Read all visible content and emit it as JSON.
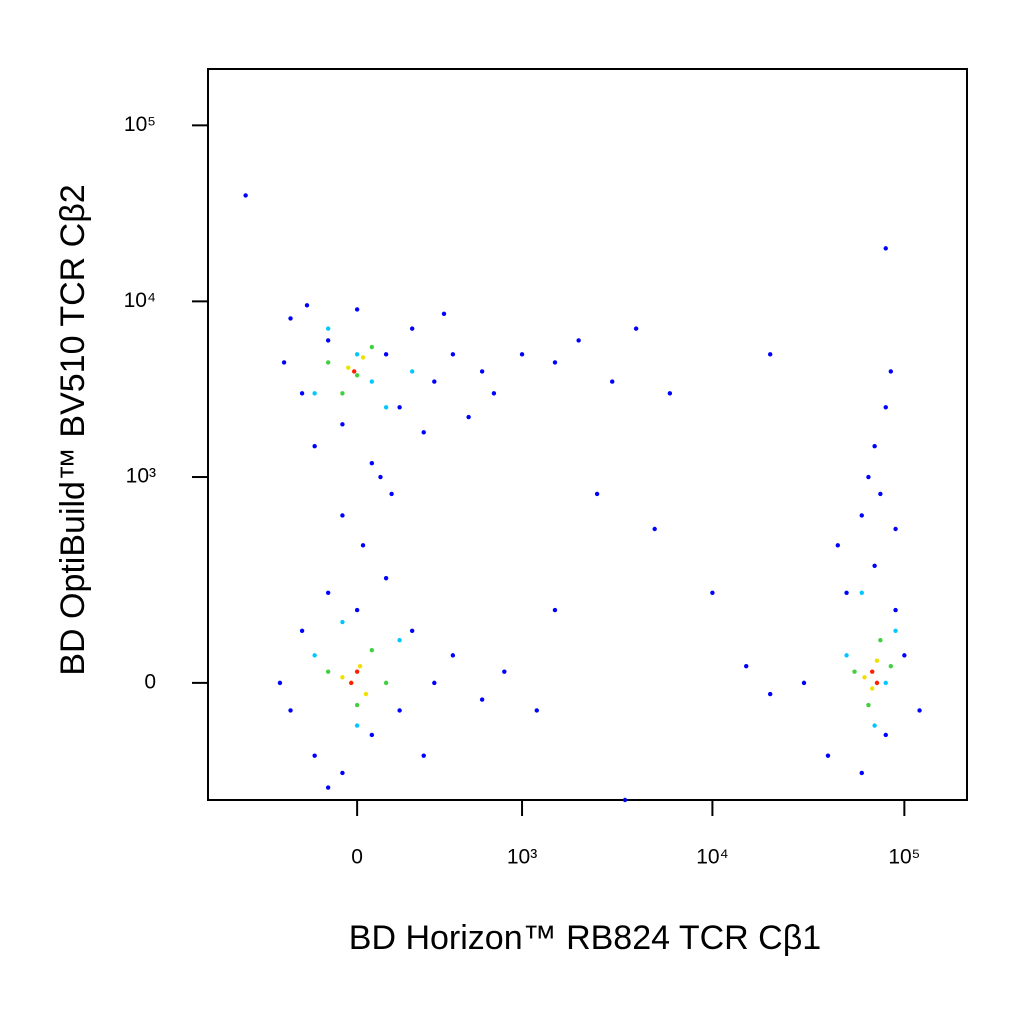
{
  "chart_data": {
    "type": "scatter",
    "xlabel": "BD Horizon™ RB824 TCR Cβ1",
    "ylabel": "BD OptiBuild™ BV510 TCR Cβ2",
    "xscale": "biexponential",
    "yscale": "biexponential",
    "xlim": [
      -820,
      212000
    ],
    "ylim": [
      -300,
      209000
    ],
    "xticks": [
      0,
      {
        "value": 1000,
        "label": "10³"
      },
      {
        "value": 10000,
        "label": "10⁴"
      },
      {
        "value": 100000,
        "label": "10⁵"
      }
    ],
    "yticks": [
      0,
      {
        "value": 1000,
        "label": "10³"
      },
      {
        "value": 10000,
        "label": "10⁴"
      },
      {
        "value": 100000,
        "label": "10⁵"
      }
    ],
    "series": [
      {
        "color": "#0000ff",
        "x": [
          -250,
          -200,
          -150,
          -100,
          -50,
          0,
          50,
          100,
          150,
          200,
          250,
          300,
          400,
          500,
          600,
          -280,
          -180,
          80,
          350,
          700,
          1000,
          1500,
          2000,
          3000,
          4000,
          6000,
          -50,
          20,
          120,
          -250,
          -200,
          -150,
          -100,
          -50,
          0,
          50,
          100,
          150,
          200,
          250,
          300,
          400,
          600,
          800,
          1200,
          -300,
          -100,
          30000,
          40000,
          50000,
          60000,
          70000,
          80000,
          90000,
          100000,
          120000,
          45000,
          60000,
          75000,
          70000,
          80000,
          65000,
          85000,
          90000,
          20000,
          15000,
          -500,
          80000,
          10000,
          2500,
          20000,
          5000,
          3500,
          1500
        ],
        "values": [
          8000,
          3000,
          1500,
          6000,
          2000,
          9000,
          1200,
          5000,
          2500,
          7000,
          1800,
          3500,
          5000,
          2200,
          4000,
          4500,
          9500,
          1000,
          8500,
          3000,
          5000,
          4500,
          6000,
          3500,
          7000,
          3000,
          600,
          400,
          800,
          -50,
          100,
          -150,
          200,
          -200,
          150,
          -100,
          250,
          -50,
          100,
          -150,
          0,
          50,
          -30,
          20,
          -50,
          0,
          -250,
          0,
          -150,
          200,
          -200,
          300,
          -100,
          150,
          50,
          -50,
          400,
          600,
          800,
          1500,
          2500,
          1000,
          4000,
          500,
          -20,
          30,
          40000,
          20000,
          200,
          800,
          5000,
          500,
          -300,
          150
        ]
      },
      {
        "color": "#00c8ff",
        "x": [
          -150,
          0,
          100,
          -100,
          200,
          50,
          -150,
          0,
          150,
          -50,
          50000,
          70000,
          90000,
          60000,
          80000
        ],
        "values": [
          3000,
          5000,
          2500,
          7000,
          4000,
          3500,
          50,
          -80,
          80,
          120,
          50,
          -80,
          100,
          200,
          0
        ]
      },
      {
        "color": "#40d040",
        "x": [
          -100,
          0,
          50,
          -50,
          -100,
          0,
          50,
          100,
          55000,
          65000,
          75000,
          85000
        ],
        "values": [
          4500,
          3800,
          5500,
          3000,
          20,
          -40,
          60,
          0,
          20,
          -40,
          80,
          30
        ]
      },
      {
        "color": "#f0e000",
        "x": [
          -30,
          20,
          -50,
          10,
          30,
          62000,
          72000,
          68000
        ],
        "values": [
          4200,
          4800,
          10,
          30,
          -20,
          10,
          40,
          -10
        ]
      },
      {
        "color": "#ff2000",
        "x": [
          -10,
          -20,
          0,
          68000,
          72000
        ],
        "values": [
          4000,
          0,
          20,
          20,
          0
        ]
      }
    ]
  }
}
